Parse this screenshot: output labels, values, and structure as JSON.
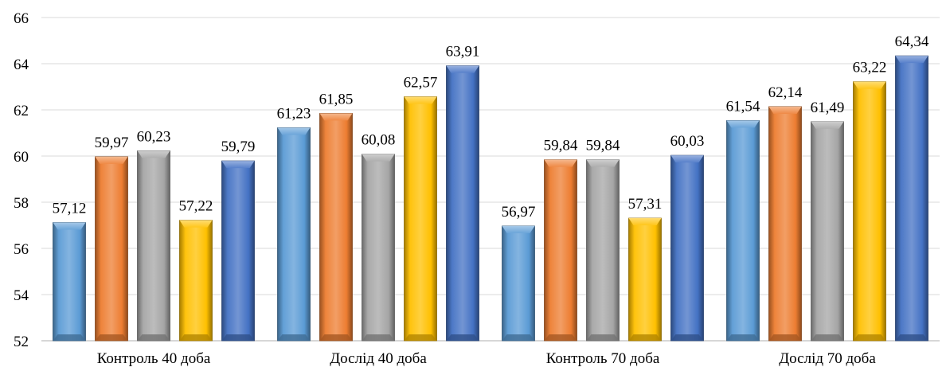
{
  "chart_data": {
    "type": "bar",
    "categories": [
      "Контроль 40 доба",
      "Дослід 40 доба",
      "Контроль 70 доба",
      "Дослід 70 доба"
    ],
    "series": [
      {
        "values": [
          57.12,
          61.23,
          56.97,
          61.54
        ],
        "labels": [
          "57,12",
          "61,23",
          "56,97",
          "61,54"
        ],
        "color": "#5b9bd5"
      },
      {
        "values": [
          59.97,
          61.85,
          59.84,
          62.14
        ],
        "labels": [
          "59,97",
          "61,85",
          "59,84",
          "62,14"
        ],
        "color": "#ed7d31"
      },
      {
        "values": [
          60.23,
          60.08,
          59.84,
          61.49
        ],
        "labels": [
          "60,23",
          "60,08",
          "59,84",
          "61,49"
        ],
        "color": "#a5a5a5"
      },
      {
        "values": [
          57.22,
          62.57,
          57.31,
          63.22
        ],
        "labels": [
          "57,22",
          "62,57",
          "57,31",
          "63,22"
        ],
        "color": "#ffc000"
      },
      {
        "values": [
          59.79,
          63.91,
          60.03,
          64.34
        ],
        "labels": [
          "59,79",
          "63,91",
          "60,03",
          "64,34"
        ],
        "color": "#4472c4"
      }
    ],
    "yticks": [
      "52",
      "54",
      "56",
      "58",
      "60",
      "62",
      "64",
      "66"
    ],
    "ylim": [
      52,
      66
    ],
    "grid": true,
    "legend": "none",
    "title": "",
    "xlabel": "",
    "ylabel": ""
  }
}
